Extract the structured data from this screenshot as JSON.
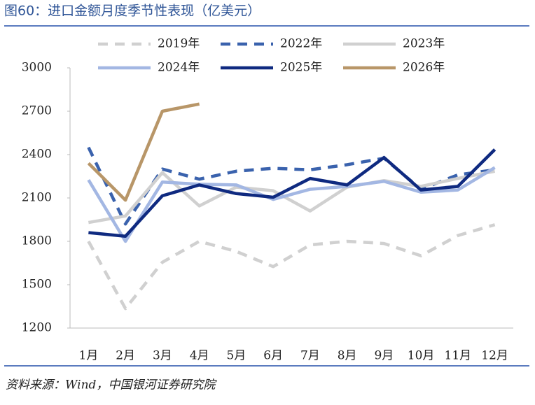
{
  "chart_data": {
    "type": "line",
    "title": "图60：进口金额月度季节性表现（亿美元）",
    "source": "资料来源：Wind，中国银河证券研究院",
    "categories": [
      "1月",
      "2月",
      "3月",
      "4月",
      "5月",
      "6月",
      "7月",
      "8月",
      "9月",
      "10月",
      "11月",
      "12月"
    ],
    "ylim": [
      1200,
      3000
    ],
    "yticks": [
      1200,
      1500,
      1800,
      2100,
      2400,
      2700,
      3000
    ],
    "grid": false,
    "series": [
      {
        "name": "2019年",
        "color": "#d0d0d0",
        "dashed": true,
        "values": [
          1800,
          1335,
          1655,
          1800,
          1730,
          1625,
          1775,
          1800,
          1785,
          1700,
          1840,
          1915
        ]
      },
      {
        "name": "2022年",
        "color": "#3a62ad",
        "dashed": true,
        "values": [
          2450,
          1920,
          2300,
          2230,
          2285,
          2305,
          2295,
          2330,
          2375,
          2160,
          2260,
          2295
        ]
      },
      {
        "name": "2023年",
        "color": "#d0d0d0",
        "dashed": false,
        "values": [
          1930,
          1975,
          2275,
          2045,
          2175,
          2150,
          2010,
          2175,
          2220,
          2180,
          2235,
          2285
        ]
      },
      {
        "name": "2024年",
        "color": "#a3b7e3",
        "dashed": false,
        "values": [
          2225,
          1800,
          2210,
          2195,
          2190,
          2090,
          2160,
          2180,
          2215,
          2140,
          2155,
          2310
        ]
      },
      {
        "name": "2025年",
        "color": "#0f2a80",
        "dashed": false,
        "values": [
          1860,
          1835,
          2115,
          2190,
          2130,
          2105,
          2235,
          2190,
          2380,
          2155,
          2180,
          2435
        ]
      },
      {
        "name": "2026年",
        "color": "#b89668",
        "dashed": false,
        "values": [
          2340,
          2085,
          2700,
          2750,
          null,
          null,
          null,
          null,
          null,
          null,
          null,
          null
        ]
      }
    ]
  }
}
